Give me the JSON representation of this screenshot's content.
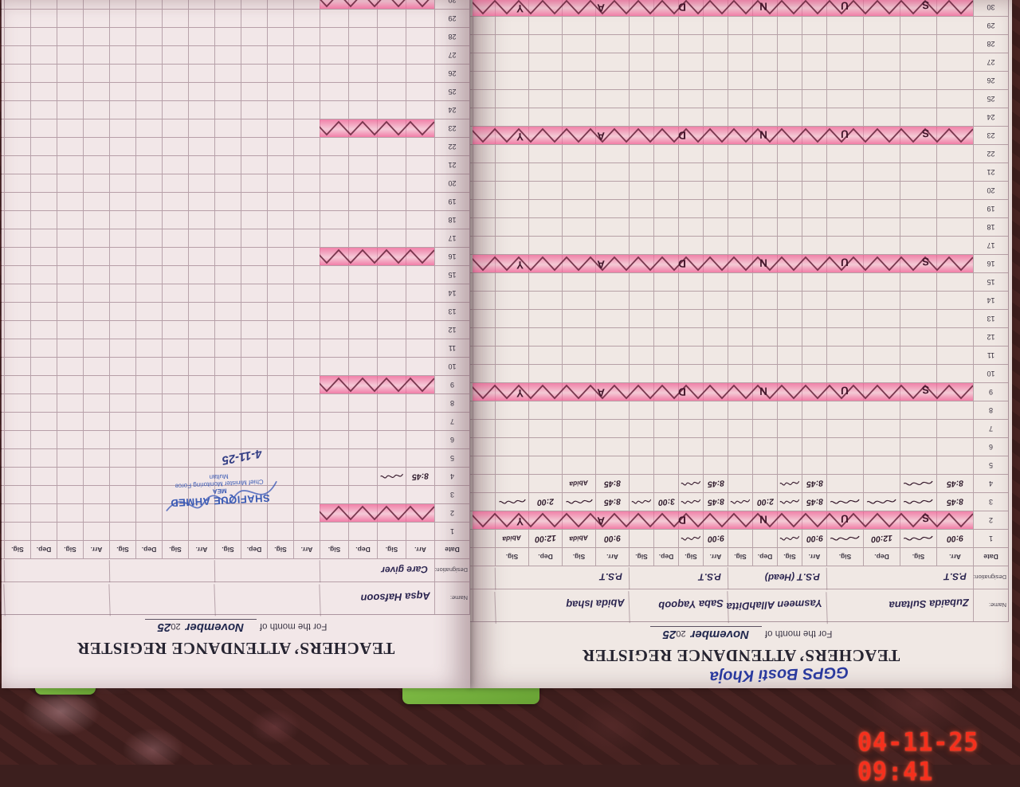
{
  "camera_timestamp": "04-11-25  09:41",
  "colors": {
    "highlighter_pink": "#f0609b",
    "ink_dark": "#2f1b2c",
    "ink_blue": "#2a3a9e",
    "stamp_blue": "#2b4fb0",
    "timestamp_red": "#f5301d",
    "paper": "#f0e8e4",
    "cover_green": "#7cb93f"
  },
  "page_main": {
    "school_note": "GGPS Bosti Khoja",
    "title": "TEACHERS’ ATTENDANCE REGISTER",
    "month_prefix": "For the month of",
    "month_handwritten": "November",
    "year_printed": "20",
    "year_handwritten": "25",
    "labels": {
      "name": "Name:",
      "designation": "Designation:",
      "date": "Date",
      "arr": "Arr.",
      "sig": "Sig.",
      "dep": "Dep.",
      "sig2": "Sig."
    },
    "days": 30,
    "sundays": [
      2,
      9,
      16,
      23,
      30
    ],
    "sunday_word": "SUNDAY",
    "teachers": [
      {
        "name": "Zubaida Sultana",
        "designation": "P.S.T",
        "entries": {
          "1": [
            "9:00",
            "~",
            "12:00",
            "~"
          ],
          "3": [
            "8:45",
            "~",
            "~",
            "~"
          ],
          "4": [
            "8:45",
            "~",
            "",
            ""
          ]
        }
      },
      {
        "name": "Yasmeen AllahDitta",
        "designation": "P.S.T (Head)",
        "entries": {
          "1": [
            "9:00",
            "~",
            "",
            ""
          ],
          "3": [
            "8:45",
            "~",
            "2:00",
            "~"
          ],
          "4": [
            "8:45",
            "~",
            "",
            ""
          ]
        }
      },
      {
        "name": "Saba Yaqoob",
        "designation": "P.S.T",
        "entries": {
          "1": [
            "9:00",
            "~",
            "",
            ""
          ],
          "3": [
            "8:45",
            "~",
            "3:00",
            "~"
          ],
          "4": [
            "8:45",
            "~",
            "",
            ""
          ]
        }
      },
      {
        "name": "Abida Ishaq",
        "designation": "P.S.T",
        "entries": {
          "1": [
            "9:00",
            "Abida",
            "12:00",
            "Abida"
          ],
          "3": [
            "8:45",
            "~",
            "2:00",
            "~"
          ],
          "4": [
            "8:45",
            "Abida",
            "",
            ""
          ]
        }
      }
    ]
  },
  "page_facing": {
    "title": "TEACHERS’ ATTENDANCE REGISTER",
    "month_prefix": "For the month of",
    "month_handwritten": "November",
    "year_printed": "20",
    "year_handwritten": "25",
    "labels": {
      "name": "Name:",
      "designation": "Designation:",
      "date": "Date",
      "arr": "Arr.",
      "sig": "Sig.",
      "dep": "Dep.",
      "sig2": "Sig."
    },
    "days": 30,
    "sundays": [
      2,
      9,
      16,
      23,
      30
    ],
    "sunday_word": "SUNDAY",
    "teachers": [
      {
        "name": "Aqsa Hafsoon",
        "designation": "Care giver",
        "entries": {
          "4": [
            "8:45",
            "~",
            "",
            ""
          ]
        }
      },
      {
        "name": "",
        "designation": "",
        "entries": {}
      },
      {
        "name": "",
        "designation": "",
        "entries": {}
      },
      {
        "name": "",
        "designation": "",
        "entries": {}
      }
    ],
    "stamp": {
      "name": "SHAFIQUE AHMED",
      "role": "MEA",
      "org": "Chief Minister Monitoring Force",
      "city": "Multan",
      "date_note": "4-11-25"
    }
  }
}
